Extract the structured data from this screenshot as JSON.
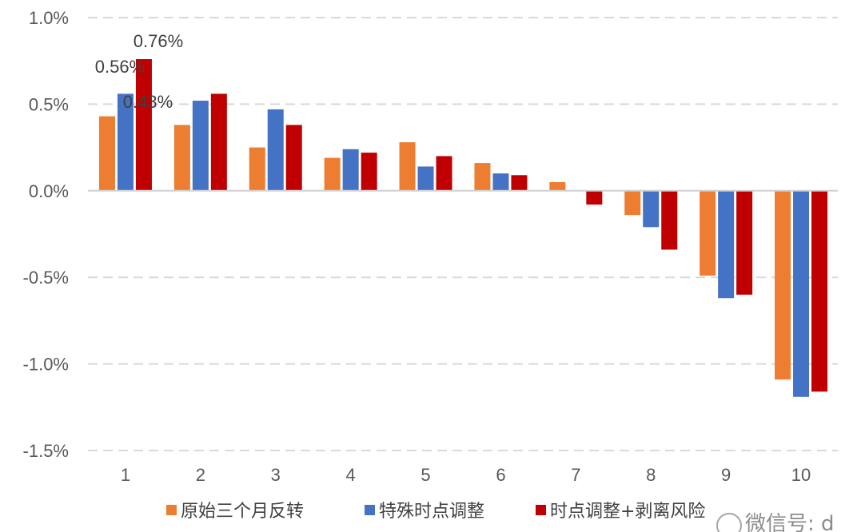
{
  "chart_data": {
    "type": "bar",
    "title": "",
    "xlabel": "",
    "ylabel": "",
    "categories": [
      "1",
      "2",
      "3",
      "4",
      "5",
      "6",
      "7",
      "8",
      "9",
      "10"
    ],
    "series": [
      {
        "name": "原始三个月反转",
        "color": "#ED7D31",
        "values": [
          0.43,
          0.38,
          0.25,
          0.19,
          0.28,
          0.16,
          0.05,
          -0.14,
          -0.49,
          -1.09
        ]
      },
      {
        "name": "特殊时点调整",
        "color": "#4472C4",
        "values": [
          0.56,
          0.52,
          0.47,
          0.24,
          0.14,
          0.1,
          0.0,
          -0.21,
          -0.62,
          -1.19
        ]
      },
      {
        "name": "时点调整+剥离风险",
        "color": "#C00000",
        "values": [
          0.76,
          0.56,
          0.38,
          0.22,
          0.2,
          0.09,
          -0.08,
          -0.34,
          -0.6,
          -1.16
        ]
      }
    ],
    "value_unit": "%",
    "ylim": [
      -1.5,
      1.0
    ],
    "yticks": [
      1.0,
      0.5,
      0.0,
      -0.5,
      -1.0,
      -1.5
    ],
    "ytick_labels": [
      "1.0%",
      "0.5%",
      "0.0%",
      "-0.5%",
      "-1.0%",
      "-1.5%"
    ],
    "data_labels": [
      {
        "series": 0,
        "category": "1",
        "text": "0.43%"
      },
      {
        "series": 1,
        "category": "1",
        "text": "0.56%"
      },
      {
        "series": 2,
        "category": "1",
        "text": "0.76%"
      }
    ],
    "grid": "horizontal dashed",
    "legend_position": "bottom",
    "watermark": "微信号: d"
  }
}
